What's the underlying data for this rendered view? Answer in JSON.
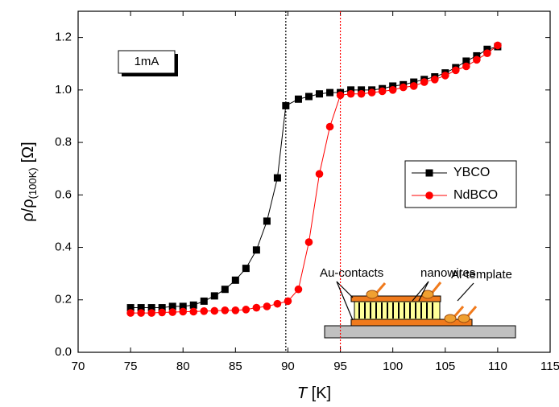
{
  "chart_data": {
    "type": "line",
    "xlabel": {
      "main": "T",
      "unit": "[K]"
    },
    "ylabel": {
      "main": "ρ/ρ",
      "sub": "(100K)",
      "unit": "[Ω]"
    },
    "xlim": [
      70,
      115
    ],
    "ylim": [
      0,
      1.3
    ],
    "xticks": [
      70,
      75,
      80,
      85,
      90,
      95,
      100,
      105,
      110,
      115
    ],
    "yticks": [
      {
        "value": 0,
        "label": "0.0"
      },
      {
        "value": 0.2,
        "label": "0.2"
      },
      {
        "value": 0.4,
        "label": "0.4"
      },
      {
        "value": 0.6,
        "label": "0.6"
      },
      {
        "value": 0.8,
        "label": "0.8"
      },
      {
        "value": 1,
        "label": "1.0"
      },
      {
        "value": 1.2,
        "label": "1.2"
      }
    ],
    "series": [
      {
        "name": "YBCO",
        "color": "#000000",
        "marker": "square",
        "x": [
          75,
          76,
          77,
          78,
          79,
          80,
          81,
          82,
          83,
          84,
          85,
          86,
          87,
          88,
          89,
          89.8,
          91,
          92,
          93,
          94,
          95,
          96,
          97,
          98,
          99,
          100,
          101,
          102,
          103,
          104,
          105,
          106,
          107,
          108,
          109,
          110
        ],
        "values": [
          0.17,
          0.17,
          0.17,
          0.17,
          0.175,
          0.175,
          0.18,
          0.195,
          0.215,
          0.24,
          0.275,
          0.32,
          0.39,
          0.5,
          0.665,
          0.94,
          0.965,
          0.975,
          0.985,
          0.99,
          0.99,
          1.0,
          1.0,
          1.0,
          1.005,
          1.015,
          1.02,
          1.03,
          1.04,
          1.05,
          1.065,
          1.085,
          1.11,
          1.13,
          1.155,
          1.165
        ]
      },
      {
        "name": "NdBCO",
        "color": "#ff0000",
        "marker": "circle",
        "x": [
          75,
          76,
          77,
          78,
          79,
          80,
          81,
          82,
          83,
          84,
          85,
          86,
          87,
          88,
          89,
          90,
          91,
          92,
          93,
          94,
          95,
          96,
          97,
          98,
          99,
          100,
          101,
          102,
          103,
          104,
          105,
          106,
          107,
          108,
          109,
          110
        ],
        "values": [
          0.15,
          0.15,
          0.15,
          0.152,
          0.153,
          0.155,
          0.155,
          0.157,
          0.158,
          0.16,
          0.16,
          0.163,
          0.17,
          0.175,
          0.185,
          0.195,
          0.24,
          0.42,
          0.68,
          0.86,
          0.98,
          0.985,
          0.985,
          0.99,
          0.995,
          1.0,
          1.01,
          1.015,
          1.03,
          1.04,
          1.055,
          1.075,
          1.09,
          1.115,
          1.14,
          1.17
        ]
      }
    ],
    "reference_lines": [
      {
        "x": 89.8,
        "color": "#000000"
      },
      {
        "x": 95,
        "color": "#ff0000"
      }
    ],
    "legend": "right",
    "annotations": {
      "current": "1mA",
      "contacts": "Au-contacts",
      "wires": "nanowires",
      "template": "Al-template"
    }
  }
}
